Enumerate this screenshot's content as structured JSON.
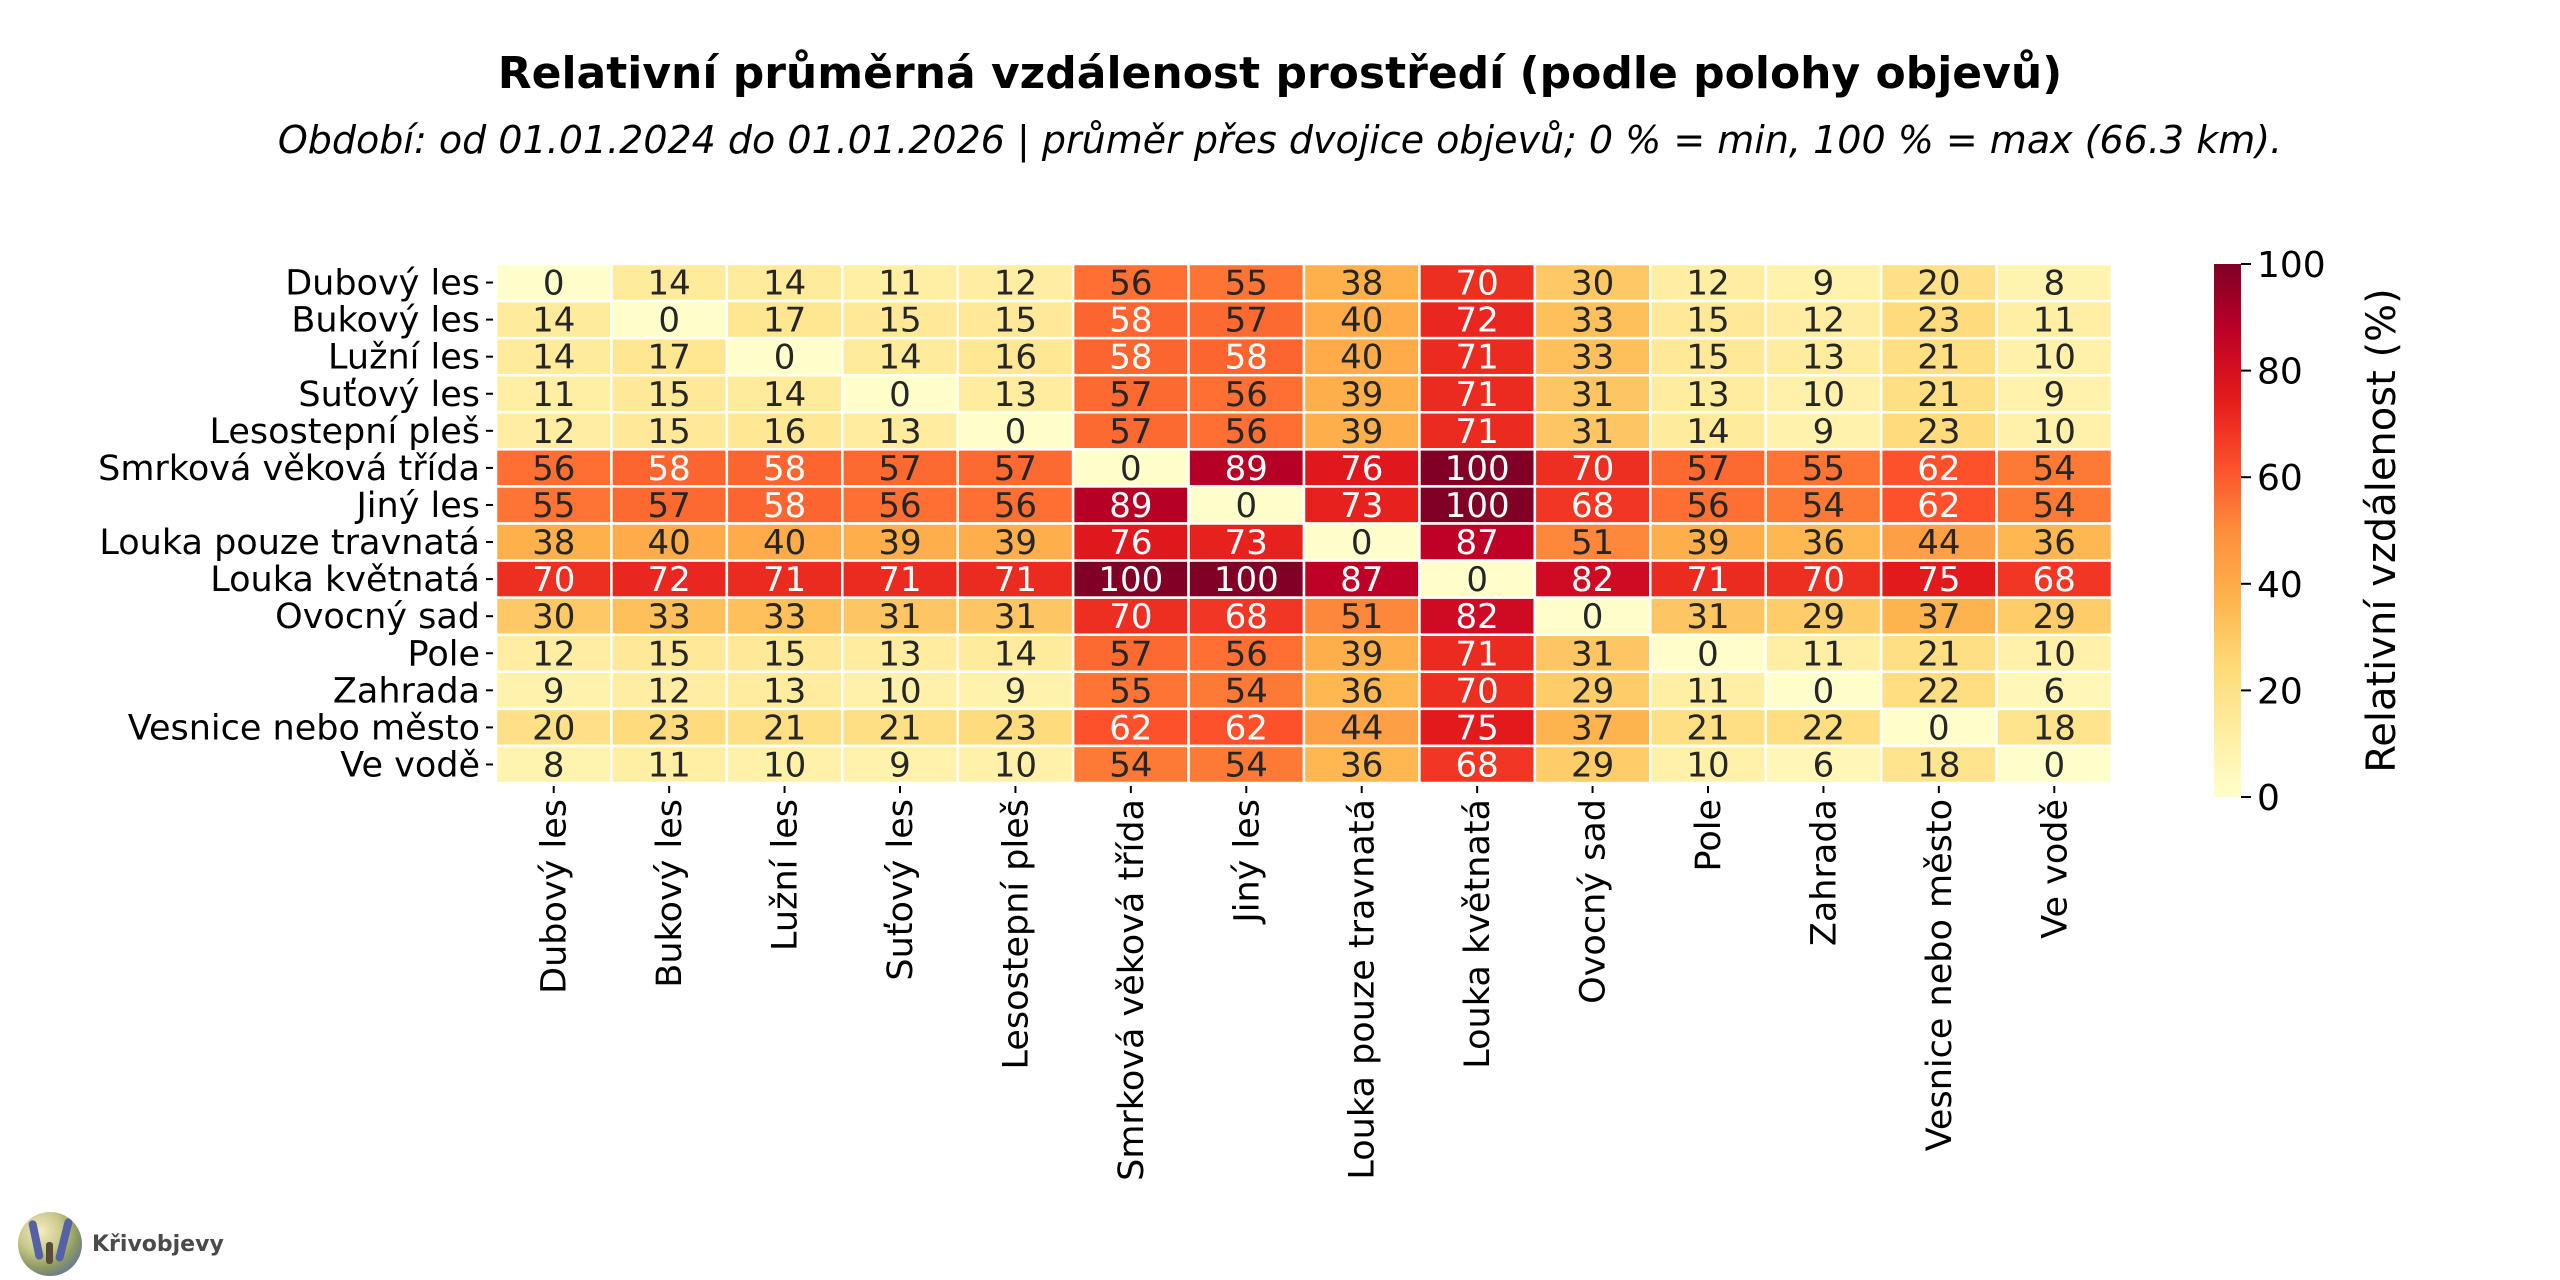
{
  "chart_data": {
    "type": "heatmap",
    "title": "Relativní průměrná vzdálenost prostředí (podle polohy objevů)",
    "subtitle": "Období: od 01.01.2024 do 01.01.2026  |  průměr přes dvojice objevů; 0 % = min, 100 % = max (66.3 km).",
    "row_labels": [
      "Dubový les",
      "Bukový les",
      "Lužní les",
      "Suťový les",
      "Lesostepní pleš",
      "Smrková věková třída",
      "Jiný les",
      "Louka pouze travnatá",
      "Louka květnatá",
      "Ovocný sad",
      "Pole",
      "Zahrada",
      "Vesnice nebo město",
      "Ve vodě"
    ],
    "col_labels": [
      "Dubový les",
      "Bukový les",
      "Lužní les",
      "Suťový les",
      "Lesostepní pleš",
      "Smrková věková třída",
      "Jiný les",
      "Louka pouze travnatá",
      "Louka květnatá",
      "Ovocný sad",
      "Pole",
      "Zahrada",
      "Vesnice nebo město",
      "Ve vodě"
    ],
    "values": [
      [
        0,
        14,
        14,
        11,
        12,
        56,
        55,
        38,
        70,
        30,
        12,
        9,
        20,
        8
      ],
      [
        14,
        0,
        17,
        15,
        15,
        58,
        57,
        40,
        72,
        33,
        15,
        12,
        23,
        11
      ],
      [
        14,
        17,
        0,
        14,
        16,
        58,
        58,
        40,
        71,
        33,
        15,
        13,
        21,
        10
      ],
      [
        11,
        15,
        14,
        0,
        13,
        57,
        56,
        39,
        71,
        31,
        13,
        10,
        21,
        9
      ],
      [
        12,
        15,
        16,
        13,
        0,
        57,
        56,
        39,
        71,
        31,
        14,
        9,
        23,
        10
      ],
      [
        56,
        58,
        58,
        57,
        57,
        0,
        89,
        76,
        100,
        70,
        57,
        55,
        62,
        54
      ],
      [
        55,
        57,
        58,
        56,
        56,
        89,
        0,
        73,
        100,
        68,
        56,
        54,
        62,
        54
      ],
      [
        38,
        40,
        40,
        39,
        39,
        76,
        73,
        0,
        87,
        51,
        39,
        36,
        44,
        36
      ],
      [
        70,
        72,
        71,
        71,
        71,
        100,
        100,
        87,
        0,
        82,
        71,
        70,
        75,
        68
      ],
      [
        30,
        33,
        33,
        31,
        31,
        70,
        68,
        51,
        82,
        0,
        31,
        29,
        37,
        29
      ],
      [
        12,
        15,
        15,
        13,
        14,
        57,
        56,
        39,
        71,
        31,
        0,
        11,
        21,
        10
      ],
      [
        9,
        12,
        13,
        10,
        9,
        55,
        54,
        36,
        70,
        29,
        11,
        0,
        22,
        6
      ],
      [
        20,
        23,
        21,
        21,
        23,
        62,
        62,
        44,
        75,
        37,
        21,
        22,
        0,
        18
      ],
      [
        8,
        11,
        10,
        9,
        10,
        54,
        54,
        36,
        68,
        29,
        10,
        6,
        18,
        0
      ]
    ],
    "colormap": "YlOrRd",
    "vmin": 0,
    "vmax": 100,
    "colorbar": {
      "label": "Relativní vzdálenost (%)",
      "ticks": [
        0,
        20,
        40,
        60,
        80,
        100
      ],
      "placement": "right"
    },
    "xlabel": "",
    "ylabel": "",
    "grid": false,
    "annotations": "cell values shown"
  },
  "colormap_stops": [
    "#ffffcc",
    "#ffeda0",
    "#fed976",
    "#feb24c",
    "#fd8d3c",
    "#fc4e2a",
    "#e31a1c",
    "#bd0026",
    "#800026"
  ],
  "branding": {
    "name": "Křivobjevy",
    "icon": "logo-avatar-icon"
  }
}
